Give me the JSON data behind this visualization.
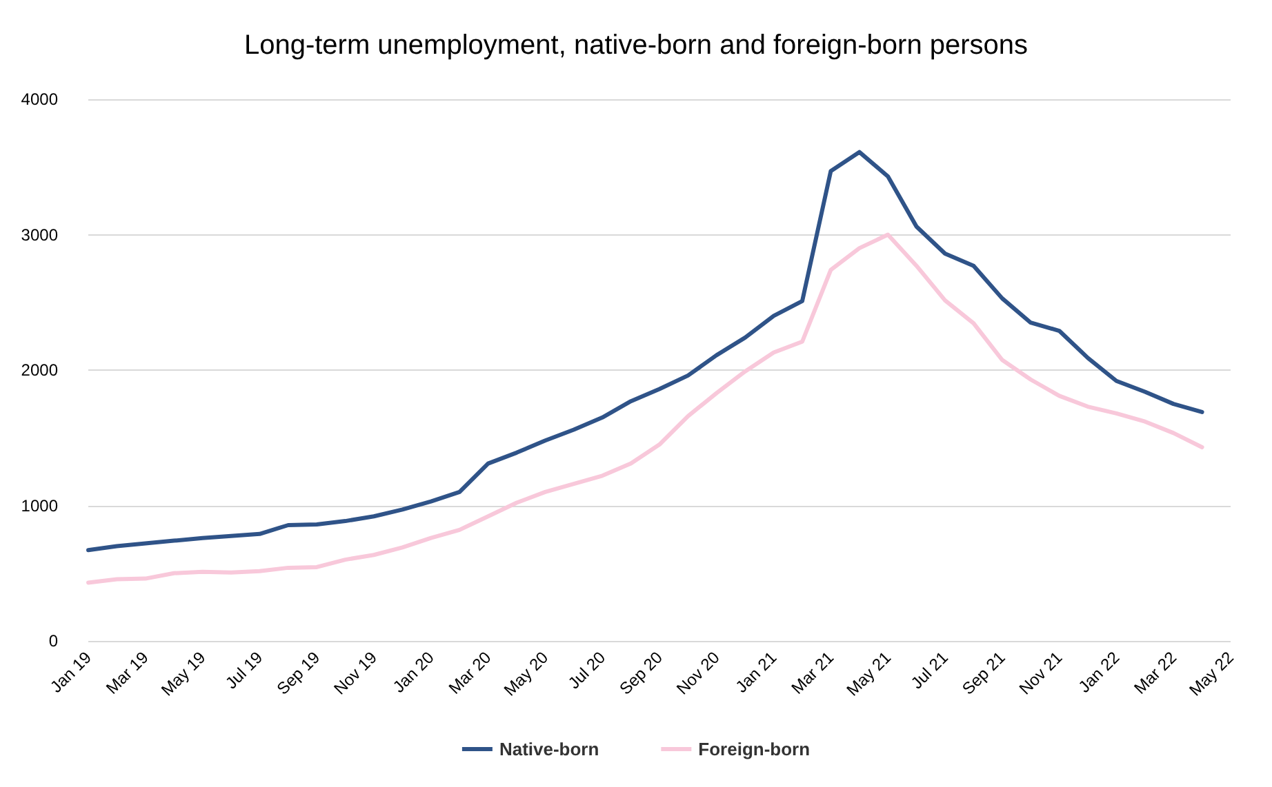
{
  "chart_data": {
    "type": "line",
    "title": "Long-term unemployment, native-born and foreign-born persons",
    "categories": [
      "Jan 19",
      null,
      "Mar 19",
      null,
      "May 19",
      null,
      "Jul 19",
      null,
      "Sep 19",
      null,
      "Nov 19",
      null,
      "Jan 20",
      null,
      "Mar 20",
      null,
      "May 20",
      null,
      "Jul 20",
      null,
      "Sep 20",
      null,
      "Nov 20",
      null,
      "Jan 21",
      null,
      "Mar 21",
      null,
      "May 21",
      null,
      "Jul 21",
      null,
      "Sep 21",
      null,
      "Nov 21",
      null,
      "Jan 22",
      null,
      "Mar 22",
      null,
      "May 22"
    ],
    "series": [
      {
        "name": "Native-born",
        "color": "#2f5388",
        "values": [
          670,
          700,
          720,
          740,
          760,
          775,
          790,
          855,
          860,
          885,
          920,
          970,
          1030,
          1100,
          1310,
          1390,
          1480,
          1560,
          1650,
          1770,
          1860,
          1960,
          2110,
          2240,
          2400,
          2510,
          3470,
          3610,
          3430,
          3060,
          2860,
          2770,
          2530,
          2350,
          2290,
          2090,
          1920,
          1840,
          1750,
          1690,
          null
        ]
      },
      {
        "name": "Foreign-born",
        "color": "#f8c8da",
        "values": [
          430,
          455,
          460,
          500,
          510,
          505,
          515,
          540,
          545,
          600,
          635,
          690,
          760,
          820,
          920,
          1020,
          1100,
          1160,
          1220,
          1310,
          1450,
          1660,
          1830,
          1990,
          2130,
          2210,
          2740,
          2900,
          3000,
          2770,
          2515,
          2345,
          2075,
          1930,
          1810,
          1730,
          1680,
          1620,
          1535,
          1430,
          null
        ]
      }
    ],
    "ylim": [
      0,
      4000
    ],
    "yticks": [
      0,
      1000,
      2000,
      3000,
      4000
    ],
    "grid": "y",
    "legend": "bottom",
    "marker": "none",
    "line_style": "solid"
  }
}
